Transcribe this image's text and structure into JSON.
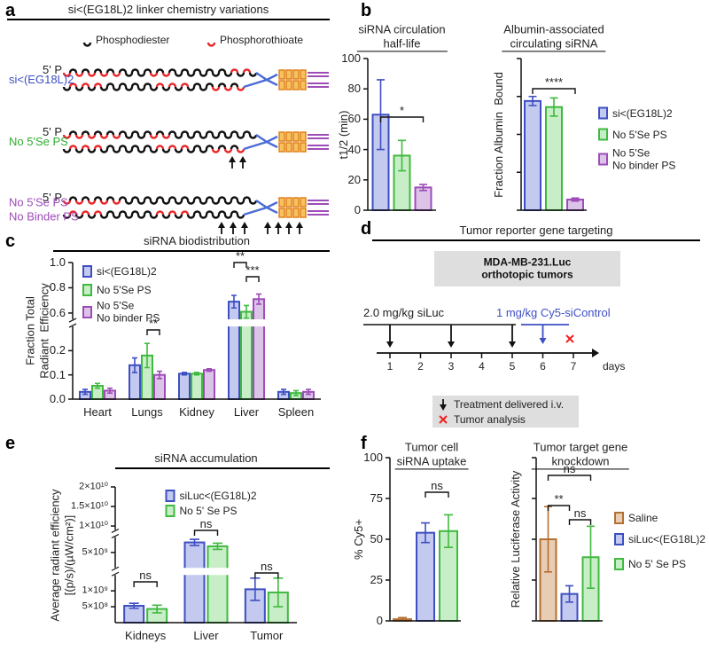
{
  "panel_labels": [
    "a",
    "b",
    "c",
    "d",
    "e",
    "f"
  ],
  "linker_diagram": {
    "title": "si<(EG18L)2 linker chemistry variations",
    "legend": [
      "Phosphodiester",
      "Phosphorothioate"
    ],
    "constructs": [
      {
        "label": "si<(EG18L)2",
        "end": "5' P"
      },
      {
        "label": "No 5'Se PS",
        "end": "5' P"
      },
      {
        "label": "No 5'Se PS\nNo Binder PS",
        "end": "5' P"
      }
    ]
  },
  "timeline_diagram": {
    "title": "Tumor reporter gene targeting",
    "box": "MDA-MB-231.Luc\northotopic tumors",
    "dose1": "2.0 mg/kg siLuc",
    "dose2": "1 mg/kg Cy5-siControl",
    "days": [
      1,
      2,
      3,
      4,
      5,
      6,
      7
    ],
    "unit": "days",
    "legend": [
      "Treatment delivered i.v.",
      "Tumor analysis"
    ]
  },
  "chart_data": [
    {
      "type": "bar",
      "title": "siRNA circulation\nhalf-life",
      "ylabel": "t1/2 (min)",
      "categories": [
        null
      ],
      "series": [
        {
          "color": "#3d4fc2",
          "fill": "#c4c9ef",
          "values": [
            63
          ],
          "errors": [
            23
          ]
        },
        {
          "color": "#3fba3f",
          "fill": "#c8eec8",
          "values": [
            36
          ],
          "errors": [
            10
          ]
        },
        {
          "color": "#9d4cb8",
          "fill": "#dcc4e8",
          "values": [
            15
          ],
          "errors": [
            2
          ]
        }
      ],
      "ylim": [
        0,
        100
      ],
      "yticks": [
        0,
        20,
        40,
        60,
        80,
        100
      ],
      "annotations": [
        "*"
      ]
    },
    {
      "type": "bar",
      "title": "Albumin-associated\ncirculating siRNA",
      "ylabel": "Fraction Albumin  Bound",
      "categories": [
        null
      ],
      "series": [
        {
          "name": "si<(EG18L)2",
          "color": "#3d4fc2",
          "fill": "#c4c9ef",
          "values": [
            0.72
          ],
          "errors": [
            0.03
          ]
        },
        {
          "name": "No 5'Se PS",
          "color": "#3fba3f",
          "fill": "#c8eec8",
          "values": [
            0.68
          ],
          "errors": [
            0.06
          ]
        },
        {
          "name": "No 5'Se\nNo binder PS",
          "color": "#9d4cb8",
          "fill": "#dcc4e8",
          "values": [
            0.07
          ],
          "errors": [
            0.01
          ]
        }
      ],
      "ylim": [
        0,
        1
      ],
      "yticks": [
        0,
        0.25,
        0.5,
        0.75,
        1
      ],
      "ytick_labels": false,
      "legend": "right",
      "annotations": [
        "****"
      ]
    },
    {
      "type": "bar",
      "title": "siRNA biodistribution",
      "ylabel": "Fraction Total\nRadiant  Efficiency",
      "categories": [
        "Heart",
        "Lungs",
        "Kidney",
        "Liver",
        "Spleen"
      ],
      "series": [
        {
          "name": "si<(EG18L)2",
          "color": "#3d4fc2",
          "fill": "#c4c9ef",
          "values": [
            0.03,
            0.14,
            0.105,
            0.69,
            0.03
          ],
          "errors": [
            0.01,
            0.03,
            0.005,
            0.05,
            0.01
          ]
        },
        {
          "name": "No 5'Se PS",
          "color": "#3fba3f",
          "fill": "#c8eec8",
          "values": [
            0.055,
            0.18,
            0.105,
            0.61,
            0.025
          ],
          "errors": [
            0.01,
            0.05,
            0.005,
            0.05,
            0.01
          ]
        },
        {
          "name": "No 5'Se\nNo binder PS",
          "color": "#9d4cb8",
          "fill": "#dcc4e8",
          "values": [
            0.035,
            0.1,
            0.12,
            0.71,
            0.03
          ],
          "errors": [
            0.01,
            0.015,
            0.005,
            0.04,
            0.01
          ]
        }
      ],
      "ylim": [
        0,
        1
      ],
      "ybreaks": [
        [
          0.3,
          0.55
        ]
      ],
      "yticks": [
        {
          "value": 0,
          "label": "0.0"
        },
        0.1,
        0.2,
        0.6,
        0.8,
        {
          "value": 1,
          "label": "1.0"
        }
      ],
      "legend": "upper left",
      "annotations": [
        "**",
        "**",
        "***"
      ]
    },
    {
      "type": "bar",
      "title": "siRNA accumulation",
      "ylabel": "Average radiant efficiency\n[(p/s)/(µW/cm²)]",
      "categories": [
        "Kidneys",
        "Liver",
        "Tumor"
      ],
      "series": [
        {
          "name": "siLuc<(EG18L)2",
          "color": "#3d4fc2",
          "fill": "#c4c9ef",
          "values": [
            530000000,
            6300000000,
            1050000000
          ],
          "errors": [
            80000000,
            400000000,
            350000000
          ]
        },
        {
          "name": "No 5' Se PS",
          "color": "#3fba3f",
          "fill": "#c8eec8",
          "values": [
            430000000,
            5800000000,
            950000000
          ],
          "errors": [
            120000000,
            400000000,
            450000000
          ]
        }
      ],
      "ylim": [
        0,
        20000000000
      ],
      "ybreaks": [
        [
          1500000000,
          3000000000
        ],
        [
          7000000000,
          9000000000
        ]
      ],
      "yticks": [
        {
          "value": 500000000,
          "label": "5×10⁸"
        },
        {
          "value": 1000000000,
          "label": "1×10⁹"
        },
        {
          "value": 5000000000,
          "label": "5×10⁹"
        },
        {
          "value": 10000000000,
          "label": "1×10¹⁰"
        },
        {
          "value": 15000000000,
          "label": "1.5×10¹⁰"
        },
        {
          "value": 20000000000,
          "label": "2×10¹⁰"
        }
      ],
      "legend": "upper center",
      "annotations": [
        "ns",
        "ns",
        "ns"
      ]
    },
    {
      "type": "bar",
      "title": "Tumor cell\nsiRNA uptake",
      "ylabel": "% Cy5+",
      "categories": [
        null
      ],
      "series": [
        {
          "color": "#b46f32",
          "fill": "#e7cdb4",
          "values": [
            1
          ],
          "errors": [
            1
          ]
        },
        {
          "color": "#3d4fc2",
          "fill": "#c4c9ef",
          "values": [
            54
          ],
          "errors": [
            6
          ]
        },
        {
          "color": "#3fba3f",
          "fill": "#c8eec8",
          "values": [
            55
          ],
          "errors": [
            10
          ]
        }
      ],
      "ylim": [
        0,
        100
      ],
      "yticks": [
        0,
        25,
        50,
        75,
        100
      ],
      "annotations": [
        "ns"
      ]
    },
    {
      "type": "bar",
      "title": "Tumor target gene\nknockdown",
      "ylabel": "Relative Luciferase Activity",
      "categories": [
        null
      ],
      "series": [
        {
          "name": "Saline",
          "color": "#b46f32",
          "fill": "#e7cdb4",
          "values": [
            1.0
          ],
          "errors": [
            0.4
          ]
        },
        {
          "name": "siLuc<(EG18L)2",
          "color": "#3d4fc2",
          "fill": "#c4c9ef",
          "values": [
            0.33
          ],
          "errors": [
            0.1
          ]
        },
        {
          "name": "No 5' Se PS",
          "color": "#3fba3f",
          "fill": "#c8eec8",
          "values": [
            0.78
          ],
          "errors": [
            0.38
          ]
        }
      ],
      "ylim": [
        0,
        2
      ],
      "yticks": [
        0,
        0.5,
        1,
        1.5,
        2
      ],
      "ytick_labels": false,
      "legend": "right",
      "annotations": [
        "**",
        "ns",
        "ns"
      ]
    }
  ]
}
